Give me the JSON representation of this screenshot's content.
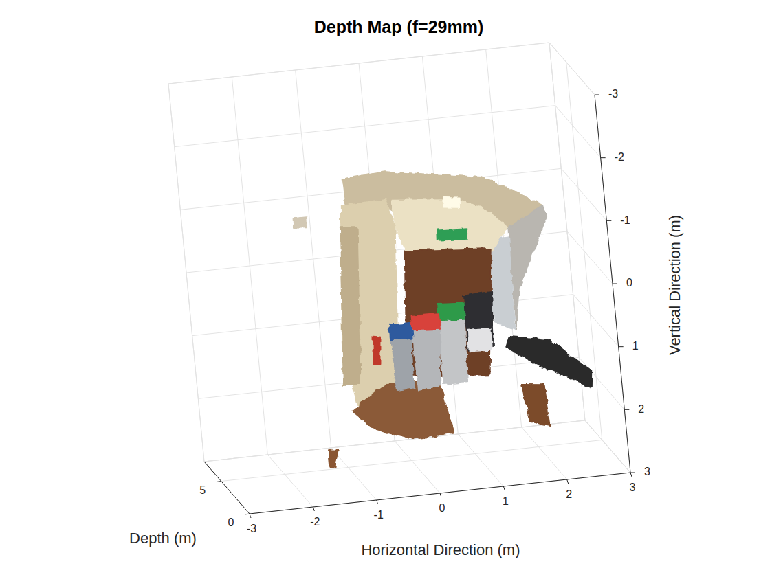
{
  "chart_data": {
    "type": "scatter3",
    "title": "Depth Map (f=29mm)",
    "x_label": "Horizontal Direction (m)",
    "y_label": "Depth (m)",
    "z_label": "Vertical Direction (m)",
    "xlim": [
      -3,
      3
    ],
    "xticks": [
      -3,
      -2,
      -1,
      0,
      1,
      2,
      3
    ],
    "ylim": [
      0,
      8
    ],
    "yticks": [
      0,
      5
    ],
    "zlim": [
      3,
      -3
    ],
    "zticks": [
      -3,
      -2,
      -1,
      0,
      1,
      2,
      3
    ],
    "grid": true,
    "patches": [
      {
        "color": "#cbbd9f",
        "x": [
          -0.74,
          -0.07,
          1.43,
          2.35,
          1.78,
          0.29,
          -0.12,
          -0.72
        ],
        "y": [
          4,
          4,
          4,
          4,
          4,
          4,
          4,
          4
        ],
        "z": [
          -1.66,
          -1.7,
          -1.45,
          -0.91,
          -0.62,
          -0.9,
          -1.16,
          -1.11
        ]
      },
      {
        "color": "#b9b6b0",
        "x": [
          1.78,
          2.35,
          2.39,
          1.85,
          1.74
        ],
        "y": [
          4,
          4,
          4,
          4,
          4
        ],
        "z": [
          -0.62,
          -0.91,
          -0.72,
          0.37,
          1.01
        ]
      },
      {
        "color": "#c9ced2",
        "x": [
          1.33,
          1.77,
          1.72,
          1.43
        ],
        "y": [
          4,
          4,
          4,
          4
        ],
        "z": [
          -0.45,
          -0.46,
          1.01,
          0.86
        ]
      },
      {
        "color": "#ebe1c4",
        "x": [
          0.0,
          0.86,
          1.38,
          1.78,
          1.48,
          0.14,
          0.01
        ],
        "y": [
          4,
          4,
          4,
          4,
          4,
          4,
          4
        ],
        "z": [
          -1.25,
          -1.16,
          -0.99,
          -0.62,
          -0.27,
          -0.42,
          -0.82
        ]
      },
      {
        "color": "#dccfae",
        "x": [
          -0.81,
          -0.11,
          0.01,
          -0.17,
          -0.42,
          -0.84,
          -0.99
        ],
        "y": [
          4,
          4,
          4,
          4,
          4,
          4,
          4
        ],
        "z": [
          -1.23,
          -1.27,
          -0.82,
          1.67,
          2.08,
          1.93,
          0.93
        ]
      },
      {
        "color": "#bfae8c",
        "x": [
          -0.85,
          -0.58,
          -0.76,
          -1.03
        ],
        "y": [
          4,
          4,
          4,
          4
        ],
        "z": [
          -0.91,
          -0.88,
          1.61,
          1.58
        ]
      },
      {
        "color": "#fffbe8",
        "x": [
          0.81,
          1.05,
          1.04,
          0.79
        ],
        "y": [
          4,
          4,
          4,
          4
        ],
        "z": [
          -1.19,
          -1.16,
          -1.01,
          -1.04
        ]
      },
      {
        "color": "#2e9e55",
        "x": [
          0.65,
          1.14,
          1.12,
          0.64
        ],
        "y": [
          4,
          4,
          4,
          4
        ],
        "z": [
          -0.69,
          -0.66,
          -0.5,
          -0.53
        ]
      },
      {
        "color": "#6e3f27",
        "x": [
          0.12,
          1.48,
          1.26,
          -0.03
        ],
        "y": [
          4,
          4,
          4,
          4
        ],
        "z": [
          -0.42,
          -0.31,
          1.67,
          1.56
        ]
      },
      {
        "color": "#8b5a37",
        "x": [
          -0.38,
          0.05,
          0.48,
          0.62,
          -0.03,
          -0.61,
          -0.93
        ],
        "y": [
          4,
          4,
          4,
          4,
          4,
          4,
          4
        ],
        "z": [
          1.65,
          1.64,
          1.74,
          2.52,
          2.56,
          2.33,
          2.0
        ]
      },
      {
        "color": "#7b4b2c",
        "x": [
          1.76,
          2.09,
          2.13,
          1.82
        ],
        "y": [
          4,
          4,
          4,
          4
        ],
        "z": [
          1.88,
          1.92,
          2.58,
          2.49
        ]
      },
      {
        "color": "#c0392b",
        "x": [
          -0.49,
          -0.39,
          -0.43,
          -0.53
        ],
        "y": [
          4,
          4,
          4,
          4
        ],
        "z": [
          0.87,
          0.89,
          1.32,
          1.31
        ]
      },
      {
        "color": "#2f2f33",
        "x": [
          0.98,
          1.42,
          1.37,
          0.96
        ],
        "y": [
          4,
          4,
          4,
          4
        ],
        "z": [
          0.38,
          0.37,
          1.24,
          1.25
        ]
      },
      {
        "color": "#e2e2e4",
        "x": [
          0.99,
          1.36,
          1.34,
          0.98
        ],
        "y": [
          4,
          4,
          4,
          4
        ],
        "z": [
          0.93,
          0.95,
          1.29,
          1.27
        ]
      },
      {
        "color": "#c3c5c7",
        "x": [
          0.56,
          0.96,
          0.91,
          0.53
        ],
        "y": [
          4,
          4,
          4,
          4
        ],
        "z": [
          0.66,
          0.68,
          1.74,
          1.73
        ]
      },
      {
        "color": "#2f9a4a",
        "x": [
          0.55,
          0.97,
          0.96,
          0.55
        ],
        "y": [
          4,
          4,
          4,
          4
        ],
        "z": [
          0.46,
          0.49,
          0.76,
          0.73
        ]
      },
      {
        "color": "#9ea3a9",
        "x": [
          -0.22,
          0.1,
          0.06,
          -0.2
        ],
        "y": [
          4,
          4,
          4,
          4
        ],
        "z": [
          0.9,
          0.92,
          1.75,
          1.76
        ]
      },
      {
        "color": "#2d5a9e",
        "x": [
          -0.23,
          0.14,
          0.12,
          -0.23
        ],
        "y": [
          4,
          4,
          4,
          4
        ],
        "z": [
          0.71,
          0.72,
          0.96,
          0.95
        ]
      },
      {
        "color": "#b4b6b9",
        "x": [
          0.13,
          0.57,
          0.48,
          0.12
        ],
        "y": [
          4,
          4,
          4,
          4
        ],
        "z": [
          0.78,
          0.79,
          1.74,
          1.81
        ]
      },
      {
        "color": "#d8423a",
        "x": [
          0.13,
          0.56,
          0.56,
          0.13
        ],
        "y": [
          4,
          4,
          4,
          4
        ],
        "z": [
          0.61,
          0.63,
          0.88,
          0.85
        ]
      },
      {
        "color": "#2b2b2b",
        "x": [
          1.62,
          2.26,
          2.86,
          2.83,
          2.01,
          1.55
        ],
        "y": [
          4,
          4,
          4,
          4,
          4,
          4
        ],
        "z": [
          1.1,
          1.23,
          1.78,
          2.05,
          1.58,
          1.26
        ]
      },
      {
        "color": "#d2c8b4",
        "x": [
          -1.58,
          -1.36,
          -1.37,
          -1.59
        ],
        "y": [
          4,
          4,
          4,
          4
        ],
        "z": [
          -1.12,
          -1.12,
          -0.95,
          -0.97
        ]
      },
      {
        "color": "#8a5530",
        "x": [
          -1.36,
          -1.21,
          -1.28,
          -1.36
        ],
        "y": [
          4,
          4,
          4,
          4
        ],
        "z": [
          2.58,
          2.6,
          2.86,
          2.85
        ]
      }
    ]
  }
}
